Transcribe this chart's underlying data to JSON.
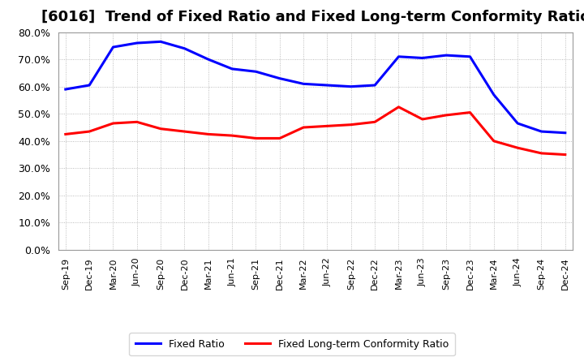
{
  "title": "[6016]  Trend of Fixed Ratio and Fixed Long-term Conformity Ratio",
  "x_labels": [
    "Sep-19",
    "Dec-19",
    "Mar-20",
    "Jun-20",
    "Sep-20",
    "Dec-20",
    "Mar-21",
    "Jun-21",
    "Sep-21",
    "Dec-21",
    "Mar-22",
    "Jun-22",
    "Sep-22",
    "Dec-22",
    "Mar-23",
    "Jun-23",
    "Sep-23",
    "Dec-23",
    "Mar-24",
    "Jun-24",
    "Sep-24",
    "Dec-24"
  ],
  "fixed_ratio": [
    59.0,
    60.5,
    74.5,
    76.0,
    76.5,
    74.0,
    70.0,
    66.5,
    65.5,
    63.0,
    61.0,
    60.5,
    60.0,
    60.5,
    71.0,
    70.5,
    71.5,
    71.0,
    57.0,
    46.5,
    43.5,
    43.0
  ],
  "fixed_lt_ratio": [
    42.5,
    43.5,
    46.5,
    47.0,
    44.5,
    43.5,
    42.5,
    42.0,
    41.0,
    41.0,
    45.0,
    45.5,
    46.0,
    47.0,
    52.5,
    48.0,
    49.5,
    50.5,
    40.0,
    37.5,
    35.5,
    35.0
  ],
  "fixed_ratio_color": "#0000FF",
  "fixed_lt_ratio_color": "#FF0000",
  "ylim": [
    0,
    80
  ],
  "yticks": [
    0,
    10,
    20,
    30,
    40,
    50,
    60,
    70,
    80
  ],
  "ytick_labels": [
    "0.0%",
    "10.0%",
    "20.0%",
    "30.0%",
    "40.0%",
    "50.0%",
    "60.0%",
    "70.0%",
    "80.0%"
  ],
  "legend_fixed_ratio": "Fixed Ratio",
  "legend_fixed_lt_ratio": "Fixed Long-term Conformity Ratio",
  "bg_color": "#FFFFFF",
  "grid_color": "#AAAAAA",
  "line_width": 2.2,
  "title_fontsize": 13
}
